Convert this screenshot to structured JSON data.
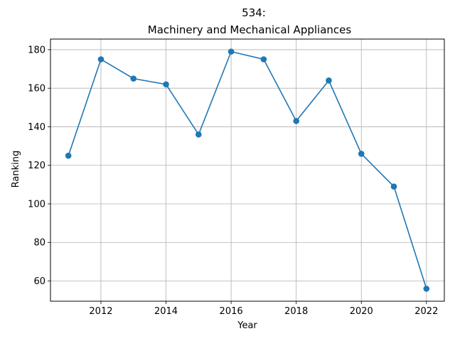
{
  "chart_data": {
    "type": "line",
    "title_line1": "534:",
    "title_line2": "Machinery and Mechanical Appliances",
    "xlabel": "Year",
    "ylabel": "Ranking",
    "x": [
      2011,
      2012,
      2013,
      2014,
      2015,
      2016,
      2017,
      2018,
      2019,
      2020,
      2021,
      2022
    ],
    "series": [
      {
        "values": [
          125,
          175,
          165,
          162,
          136,
          179,
          175,
          143,
          164,
          126,
          109,
          56
        ]
      }
    ],
    "xlim": [
      2010.45,
      2022.55
    ],
    "ylim": [
      49.5,
      185.5
    ],
    "xticks": [
      2012,
      2014,
      2016,
      2018,
      2020,
      2022
    ],
    "yticks": [
      60,
      80,
      100,
      120,
      140,
      160,
      180
    ],
    "grid": true,
    "line_color": "#1f77b4",
    "marker": "circle"
  }
}
